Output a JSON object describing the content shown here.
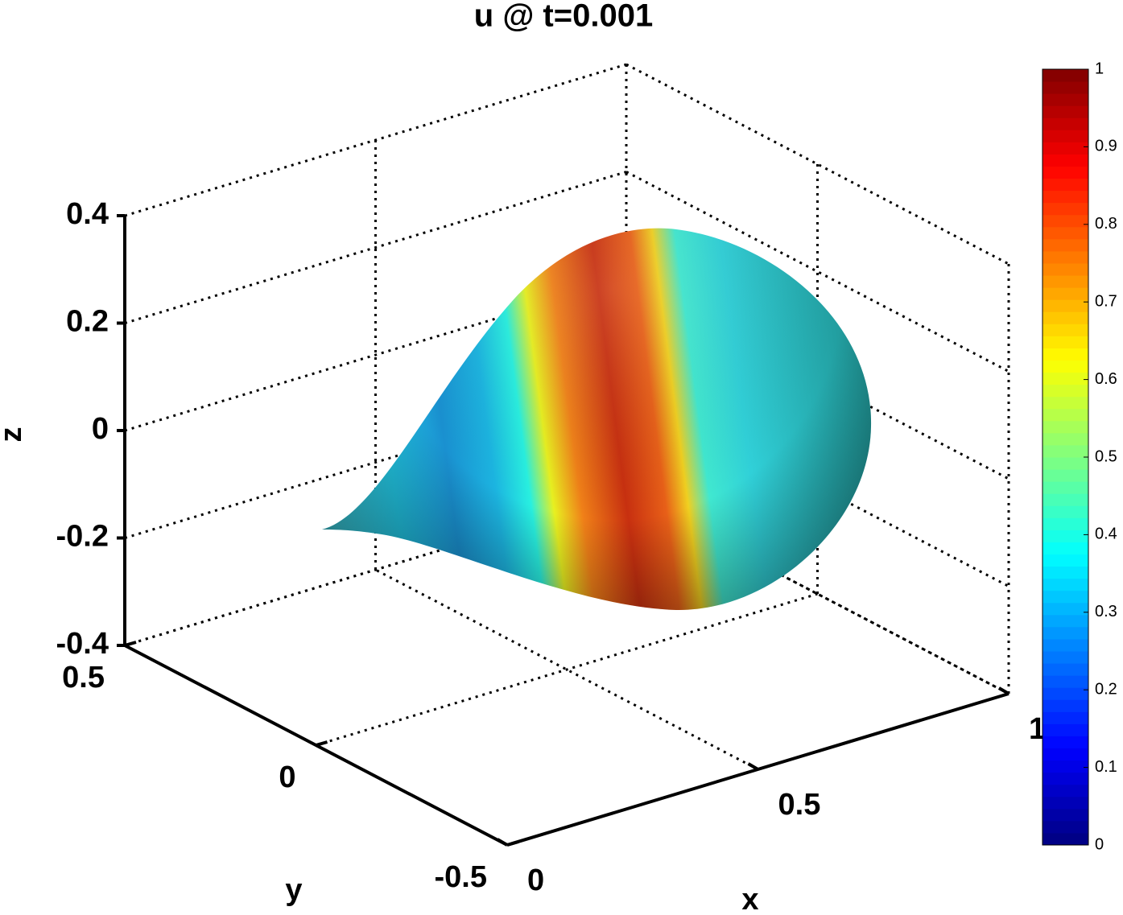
{
  "chart_data": {
    "type": "surface",
    "title": "u @ t=0.001",
    "xlabel": "x",
    "ylabel": "y",
    "zlabel": "z",
    "xlim": [
      0,
      1
    ],
    "xticks": [
      0,
      0.5,
      1
    ],
    "ylim": [
      -0.5,
      0.5
    ],
    "yticks": [
      -0.5,
      0,
      0.5
    ],
    "zlim": [
      -0.4,
      0.4
    ],
    "zticks": [
      -0.4,
      -0.2,
      0,
      0.2,
      0.4
    ],
    "clim": [
      0,
      1
    ],
    "cticks": [
      0,
      0.1,
      0.2,
      0.3,
      0.4,
      0.5,
      0.6,
      0.7,
      0.8,
      0.9,
      1
    ],
    "colormap": "jet",
    "grid": true
  }
}
